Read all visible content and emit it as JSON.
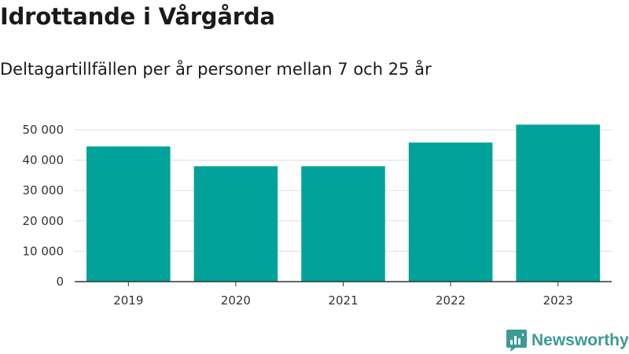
{
  "title": "Idrottande i Vårgårda",
  "subtitle": "Deltagartillfällen per år personer mellan 7 och 25 år",
  "brand": {
    "name": "Newsworthy",
    "icon": "newsworthy-logo-icon",
    "color": "#3d9a95"
  },
  "colors": {
    "bar": "#00a29a",
    "grid": "#dddddd",
    "axis": "#333333"
  },
  "chart_data": {
    "type": "bar",
    "categories": [
      "2019",
      "2020",
      "2021",
      "2022",
      "2023"
    ],
    "values": [
      44500,
      38000,
      38000,
      45800,
      51700
    ],
    "ylim": [
      0,
      50000
    ],
    "yticks": [
      0,
      10000,
      20000,
      30000,
      40000,
      50000
    ],
    "ytick_labels": [
      "0",
      "10 000",
      "20 000",
      "30 000",
      "40 000",
      "50 000"
    ],
    "xlabel": "",
    "ylabel": "",
    "grid": true,
    "legend": false
  }
}
